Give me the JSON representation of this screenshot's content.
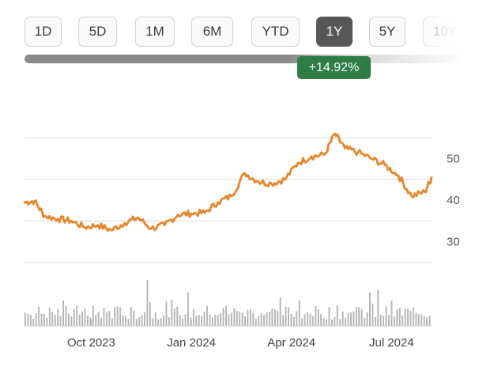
{
  "range_selector": {
    "buttons": [
      {
        "label": "1D",
        "active": false
      },
      {
        "label": "5D",
        "active": false
      },
      {
        "label": "1M",
        "active": false
      },
      {
        "label": "6M",
        "active": false
      },
      {
        "label": "YTD",
        "active": false
      },
      {
        "label": "1Y",
        "active": true
      },
      {
        "label": "5Y",
        "active": false
      },
      {
        "label": "10Y",
        "active": false
      }
    ]
  },
  "change_badge": {
    "text": "+14.92%",
    "color": "#2e7d45"
  },
  "colors": {
    "line": "#e8852a",
    "grid": "#d9d9d9",
    "volume": "#b5b5b5",
    "active_button": "#575757"
  },
  "chart_data": {
    "type": "line",
    "ylim": [
      25,
      60
    ],
    "yticks": [
      "30",
      "40",
      "50"
    ],
    "xticks": [
      {
        "label": "Oct 2023",
        "month": 2
      },
      {
        "label": "Jan 2024",
        "month": 5
      },
      {
        "label": "Apr 2024",
        "month": 8
      },
      {
        "label": "Jul 2024",
        "month": 11
      }
    ],
    "x_months": [
      0,
      0.3,
      0.6,
      1.0,
      1.4,
      1.8,
      2.2,
      2.6,
      3.0,
      3.4,
      3.8,
      4.2,
      4.6,
      5.0,
      5.4,
      5.8,
      6.2,
      6.6,
      7.0,
      7.4,
      7.8,
      8.2,
      8.6,
      9.0,
      9.3,
      9.6,
      10.0,
      10.4,
      10.8,
      11.2,
      11.6,
      12.0,
      12.2
    ],
    "price": [
      39.5,
      39.8,
      36.2,
      35.5,
      35.0,
      33.5,
      34.0,
      32.8,
      34.5,
      35.8,
      33.2,
      34.0,
      36.5,
      36.8,
      37.0,
      39.5,
      41.0,
      46.5,
      44.5,
      44.0,
      45.0,
      49.0,
      50.5,
      51.0,
      56.0,
      52.5,
      51.5,
      50.0,
      48.5,
      46.0,
      41.0,
      42.0,
      45.5
    ],
    "volume_bars": 150
  }
}
